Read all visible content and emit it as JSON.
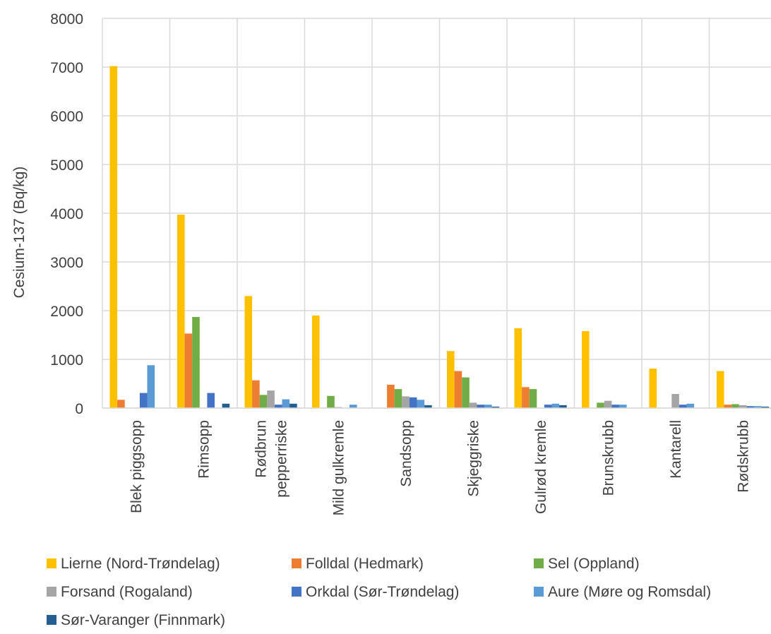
{
  "chart_data": {
    "type": "bar",
    "title": "",
    "xlabel": "",
    "ylabel": "Cesium-137 (Bq/kg)",
    "ylim": [
      0,
      8000
    ],
    "yticks": [
      0,
      1000,
      2000,
      3000,
      4000,
      5000,
      6000,
      7000,
      8000
    ],
    "grid": true,
    "legend_position": "bottom",
    "categories": [
      [
        "Blek piggsopp"
      ],
      [
        "Rimsopp"
      ],
      [
        "Rødbrun",
        "pepperriske"
      ],
      [
        "Mild gulkremle"
      ],
      [
        "Sandsopp"
      ],
      [
        "Skjeggriske"
      ],
      [
        "Gulrød kremle"
      ],
      [
        "Brunskrubb"
      ],
      [
        "Kantarell"
      ],
      [
        "Rødskrubb"
      ]
    ],
    "series": [
      {
        "name": "Lierne (Nord-Trøndelag)",
        "color": "#ffc000",
        "values": [
          7020,
          3970,
          2300,
          1900,
          0,
          1170,
          1640,
          1580,
          810,
          760
        ]
      },
      {
        "name": "Folldal (Hedmark)",
        "color": "#ed7d31",
        "values": [
          170,
          1530,
          570,
          0,
          480,
          760,
          430,
          0,
          0,
          70
        ]
      },
      {
        "name": "Sel (Oppland)",
        "color": "#70ad47",
        "values": [
          0,
          1870,
          270,
          250,
          390,
          630,
          390,
          110,
          0,
          80
        ]
      },
      {
        "name": "Forsand (Rogaland)",
        "color": "#a5a5a5",
        "values": [
          0,
          0,
          360,
          20,
          240,
          110,
          0,
          150,
          290,
          60
        ]
      },
      {
        "name": "Orkdal (Sør-Trøndelag)",
        "color": "#4472c4",
        "values": [
          310,
          310,
          70,
          0,
          220,
          70,
          70,
          70,
          70,
          40
        ]
      },
      {
        "name": "Aure (Møre og Romsdal)",
        "color": "#5b9bd5",
        "values": [
          880,
          0,
          180,
          70,
          170,
          70,
          90,
          70,
          90,
          40
        ]
      },
      {
        "name": "Sør-Varanger (Finnmark)",
        "color": "#255e91",
        "values": [
          0,
          90,
          90,
          0,
          60,
          30,
          60,
          0,
          0,
          30
        ]
      }
    ]
  }
}
